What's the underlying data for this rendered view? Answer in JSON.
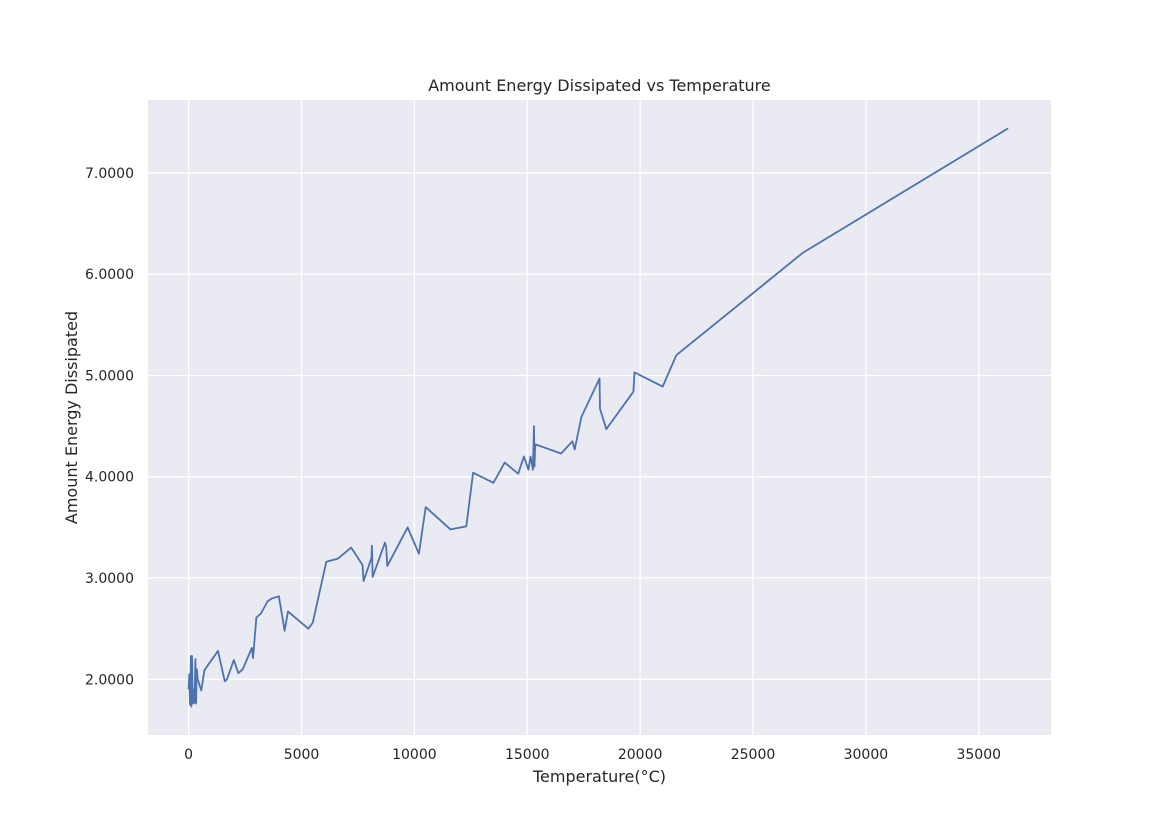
{
  "chart_data": {
    "type": "line",
    "title": "Amount Energy Dissipated vs Temperature",
    "xlabel": "Temperature(°C)",
    "ylabel": "Amount Energy Dissipated",
    "xlim": [
      -1800,
      38200
    ],
    "ylim": [
      1.45,
      7.72
    ],
    "xticks": [
      0,
      5000,
      10000,
      15000,
      20000,
      25000,
      30000,
      35000
    ],
    "xtick_labels": [
      "0",
      "5000",
      "10000",
      "15000",
      "20000",
      "25000",
      "30000",
      "35000"
    ],
    "yticks": [
      2.0,
      3.0,
      4.0,
      5.0,
      6.0,
      7.0
    ],
    "ytick_labels": [
      "2.0000",
      "3.0000",
      "4.0000",
      "5.0000",
      "6.0000",
      "7.0000"
    ],
    "grid": true,
    "colors": {
      "background": "#eaeaf2",
      "grid": "#ffffff",
      "line": "#4c72b0"
    },
    "series": [
      {
        "x": [
          0,
          30,
          60,
          80,
          100,
          120,
          150,
          180,
          200,
          230,
          260,
          300,
          330,
          360,
          400,
          450,
          500,
          560,
          700,
          760,
          1300,
          1600,
          1700,
          2000,
          2200,
          2400,
          2800,
          2850,
          3000,
          3200,
          3500,
          3700,
          4000,
          4250,
          4400,
          5300,
          5500,
          6100,
          6600,
          7200,
          7700,
          7750,
          8100,
          8120,
          8150,
          8700,
          8750,
          8800,
          9700,
          10200,
          10500,
          11600,
          12300,
          12600,
          13500,
          14000,
          14600,
          14850,
          15050,
          15150,
          15250,
          15300,
          15320,
          15350,
          16500,
          17000,
          17100,
          17400,
          18200,
          18220,
          18500,
          19700,
          19750,
          21000,
          21600,
          27200,
          36300
        ],
        "y": [
          1.9,
          2.05,
          1.75,
          1.85,
          2.23,
          1.73,
          2.23,
          1.8,
          1.76,
          1.9,
          1.77,
          2.2,
          1.76,
          2.1,
          2.0,
          1.97,
          1.93,
          1.89,
          2.09,
          2.11,
          2.28,
          1.98,
          2.0,
          2.19,
          2.06,
          2.1,
          2.31,
          2.21,
          2.61,
          2.65,
          2.77,
          2.8,
          2.82,
          2.48,
          2.67,
          2.5,
          2.56,
          3.16,
          3.19,
          3.3,
          3.13,
          2.97,
          3.2,
          3.32,
          3.01,
          3.35,
          3.3,
          3.12,
          3.5,
          3.24,
          3.7,
          3.48,
          3.51,
          4.04,
          3.94,
          4.14,
          4.03,
          4.2,
          4.07,
          4.2,
          4.07,
          4.5,
          4.1,
          4.32,
          4.23,
          4.35,
          4.27,
          4.59,
          4.97,
          4.67,
          4.47,
          4.84,
          5.03,
          4.89,
          5.2,
          6.21,
          7.44
        ]
      }
    ]
  }
}
